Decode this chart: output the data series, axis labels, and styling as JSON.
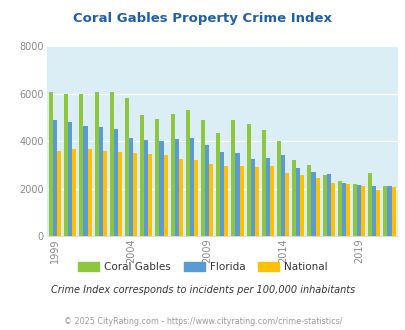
{
  "title": "Coral Gables Property Crime Index",
  "years": [
    1999,
    2000,
    2001,
    2002,
    2003,
    2004,
    2005,
    2006,
    2007,
    2008,
    2009,
    2010,
    2011,
    2012,
    2013,
    2014,
    2015,
    2016,
    2017,
    2018,
    2019,
    2020,
    2021
  ],
  "coral_gables": [
    6050,
    6000,
    6000,
    6050,
    6050,
    5800,
    5100,
    4950,
    5150,
    5300,
    4900,
    4350,
    4900,
    4700,
    4450,
    4000,
    3200,
    3000,
    2550,
    2300,
    2200,
    2650,
    2100
  ],
  "florida": [
    4900,
    4800,
    4650,
    4600,
    4500,
    4150,
    4050,
    4000,
    4100,
    4150,
    3850,
    3550,
    3500,
    3250,
    3300,
    3400,
    2850,
    2700,
    2600,
    2250,
    2150,
    2100,
    2100
  ],
  "national": [
    3600,
    3650,
    3650,
    3600,
    3550,
    3500,
    3450,
    3400,
    3250,
    3200,
    3050,
    2950,
    2950,
    2900,
    2950,
    2650,
    2550,
    2450,
    2250,
    2200,
    2100,
    1950,
    2050
  ],
  "coral_gables_color": "#8dc63f",
  "florida_color": "#5b9bd5",
  "national_color": "#ffc000",
  "bg_color": "#dceef5",
  "title_color": "#1f5fa6",
  "subtitle": "Crime Index corresponds to incidents per 100,000 inhabitants",
  "footer": "© 2025 CityRating.com - https://www.cityrating.com/crime-statistics/",
  "ylim": [
    0,
    8000
  ],
  "yticks": [
    0,
    2000,
    4000,
    6000,
    8000
  ],
  "tick_years": [
    1999,
    2004,
    2009,
    2014,
    2019
  ]
}
